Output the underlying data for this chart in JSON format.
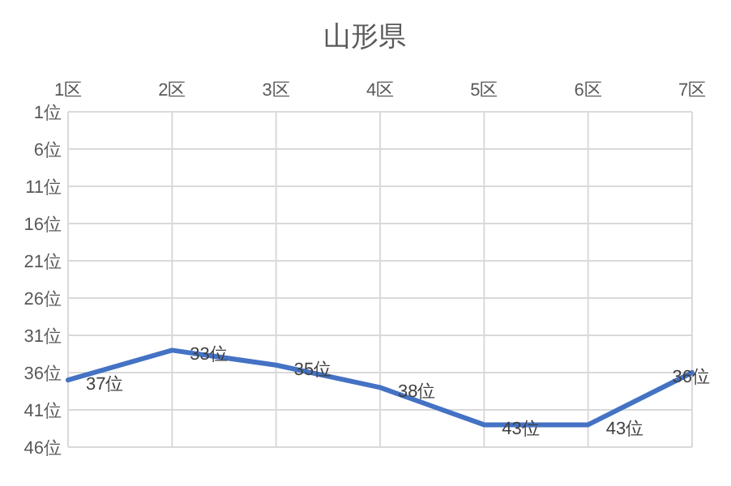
{
  "chart_data": {
    "type": "line",
    "title": "山形県",
    "categories": [
      "1区",
      "2区",
      "3区",
      "4区",
      "5区",
      "6区",
      "7区"
    ],
    "values": [
      37,
      33,
      35,
      38,
      43,
      43,
      36
    ],
    "value_labels": [
      "37位",
      "33位",
      "35位",
      "38位",
      "43位",
      "43位",
      "36位"
    ],
    "color": "#4472c4",
    "ylim": [
      46,
      1
    ],
    "yticks": [
      {
        "value": 1,
        "label": "1位"
      },
      {
        "value": 6,
        "label": "6位"
      },
      {
        "value": 11,
        "label": "11位"
      },
      {
        "value": 16,
        "label": "16位"
      },
      {
        "value": 21,
        "label": "21位"
      },
      {
        "value": 26,
        "label": "26位"
      },
      {
        "value": 31,
        "label": "31位"
      },
      {
        "value": 36,
        "label": "36位"
      },
      {
        "value": 41,
        "label": "41位"
      },
      {
        "value": 46,
        "label": "46位"
      }
    ],
    "grid": true
  }
}
